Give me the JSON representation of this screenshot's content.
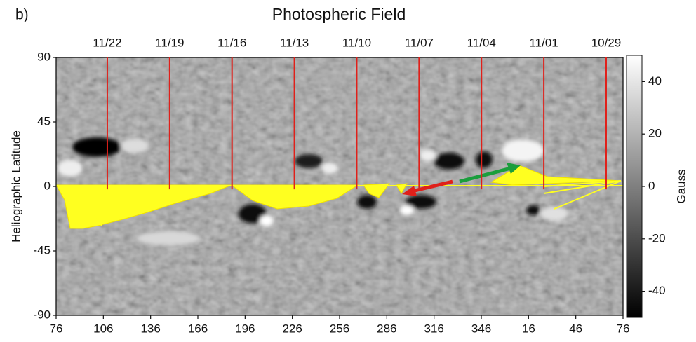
{
  "panel_label": "b)",
  "chart_data": {
    "type": "heatmap",
    "title": "Photospheric Field",
    "y_label": "Heliographic Latitude",
    "xlim": [
      76,
      436
    ],
    "xticks": [
      76,
      106,
      136,
      166,
      196,
      226,
      256,
      286,
      316,
      346,
      {
        "value": 376,
        "label": "16"
      },
      {
        "value": 406,
        "label": "46"
      },
      {
        "value": 436,
        "label": "76"
      }
    ],
    "ylim": [
      -90,
      90
    ],
    "yticks": [
      -90,
      -45,
      0,
      45,
      90
    ],
    "date_markers": {
      "color": "#e0201a",
      "labels": [
        "11/22",
        "11/19",
        "11/16",
        "11/13",
        "11/10",
        "11/07",
        "11/04",
        "11/01",
        "10/29"
      ],
      "x": [
        108.5,
        148.1,
        187.7,
        227.3,
        266.9,
        306.5,
        346.1,
        385.7,
        425.3
      ]
    },
    "colorbar": {
      "label": "Gauss",
      "lim": [
        -50,
        50
      ],
      "ticks": [
        -40,
        -20,
        0,
        20,
        40
      ]
    }
  }
}
